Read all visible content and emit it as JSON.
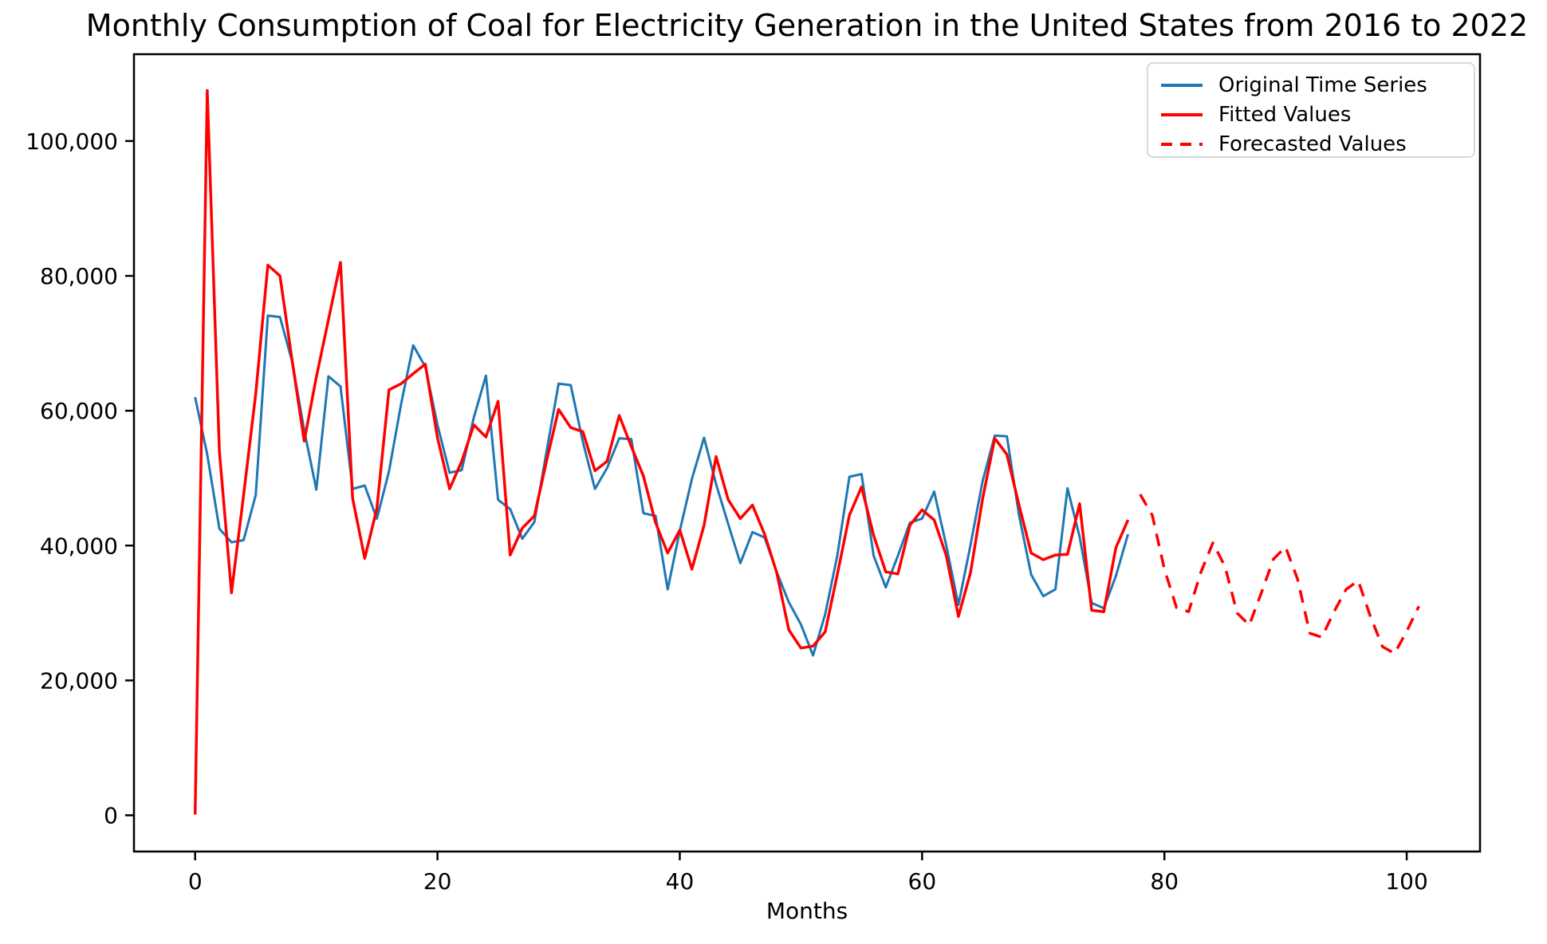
{
  "chart_data": {
    "type": "line",
    "title": "Monthly Consumption of Coal for Electricity Generation in the United States from 2016 to 2022",
    "xlabel": "Months",
    "ylabel": "",
    "xlim": [
      -5.05,
      106.05
    ],
    "ylim": [
      -5375,
      112875
    ],
    "x_ticks": [
      0,
      20,
      40,
      60,
      80,
      100
    ],
    "x_tick_labels": [
      "0",
      "20",
      "40",
      "60",
      "80",
      "100"
    ],
    "y_ticks": [
      0,
      20000,
      40000,
      60000,
      80000,
      100000
    ],
    "y_tick_labels": [
      "0",
      "20,000",
      "40,000",
      "60,000",
      "80,000",
      "100,000"
    ],
    "grid": false,
    "legend_position": "upper right",
    "axis_color": "#000000",
    "background": "#ffffff",
    "series": [
      {
        "name": "Original Time Series",
        "color": "#1f77b4",
        "style": "solid",
        "width": 3,
        "x_start": 0,
        "values": [
          62000,
          53500,
          42500,
          40500,
          40800,
          47500,
          74100,
          73900,
          67300,
          57100,
          48300,
          65100,
          63600,
          48400,
          48900,
          44000,
          51000,
          61000,
          69700,
          66500,
          57900,
          50800,
          51200,
          59000,
          65200,
          46800,
          45400,
          41000,
          43500,
          53900,
          64000,
          63800,
          55400,
          48400,
          51500,
          55900,
          55800,
          44800,
          44400,
          33500,
          42200,
          49900,
          56000,
          49100,
          43200,
          37400,
          42000,
          41200,
          36100,
          31600,
          28300,
          23700,
          29800,
          38500,
          50200,
          50600,
          38500,
          33800,
          38500,
          43400,
          44000,
          48000,
          40000,
          31200,
          40100,
          49600,
          56300,
          56200,
          44500,
          35700,
          32500,
          33500,
          48500,
          41300,
          31500,
          30700,
          35500,
          41700
        ]
      },
      {
        "name": "Fitted Values",
        "color": "#ff0000",
        "style": "solid",
        "width": 3.5,
        "x_start": 0,
        "values": [
          100,
          107500,
          54000,
          33000,
          47500,
          62500,
          81600,
          80000,
          67500,
          55500,
          65000,
          73500,
          82000,
          47000,
          38100,
          45500,
          63100,
          64000,
          65500,
          66900,
          56000,
          48400,
          52500,
          57900,
          56100,
          61400,
          38600,
          42600,
          44400,
          52500,
          60200,
          57500,
          56900,
          51100,
          52500,
          59300,
          54700,
          50300,
          43400,
          38900,
          42300,
          36500,
          43000,
          53200,
          46800,
          44000,
          46000,
          41700,
          36000,
          27500,
          24800,
          25100,
          27200,
          35700,
          44500,
          48700,
          41500,
          36100,
          35800,
          43000,
          45300,
          43800,
          38500,
          29500,
          36000,
          47000,
          55900,
          53500,
          46000,
          38900,
          37900,
          38600,
          38700,
          46200,
          30400,
          30200,
          39700,
          43800
        ]
      },
      {
        "name": "Forecasted Values",
        "color": "#ff0000",
        "style": "dashed",
        "width": 3.5,
        "x_start": 78,
        "values": [
          47600,
          44500,
          36500,
          30800,
          30200,
          36000,
          40400,
          36900,
          30000,
          28200,
          33000,
          38000,
          39800,
          35000,
          27000,
          26400,
          30200,
          33500,
          34800,
          29500,
          25000,
          24000,
          27300,
          31000
        ]
      }
    ]
  }
}
